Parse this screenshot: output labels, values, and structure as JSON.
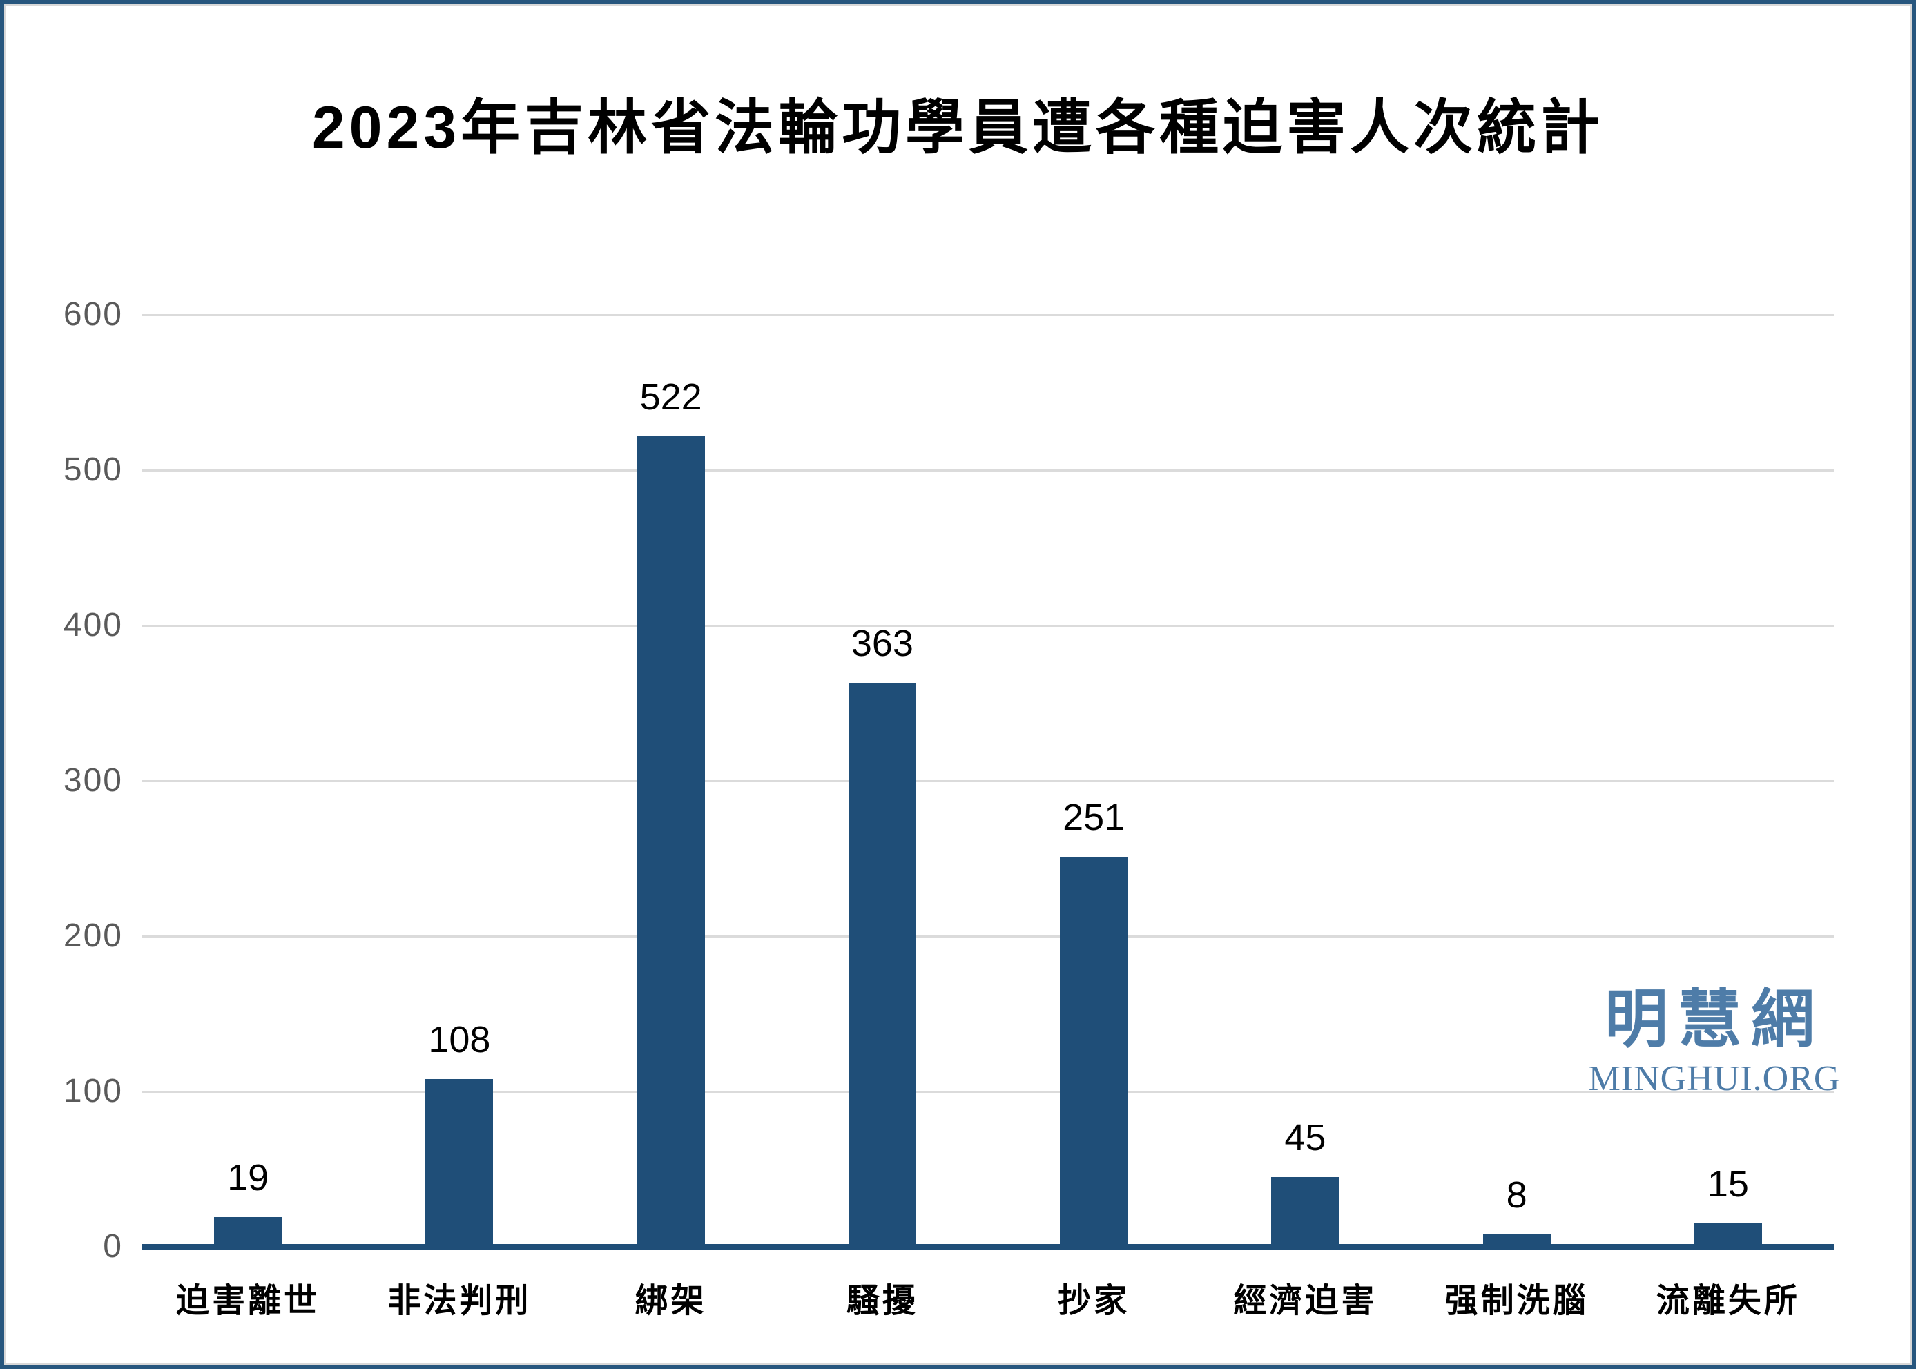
{
  "title": "2023年吉林省法輪功學員遭各種迫害人次統計",
  "watermark": {
    "cjk": "明慧網",
    "latin": "MINGHUI.ORG"
  },
  "colors": {
    "bar": "#1F4E78",
    "axis_line": "#1F4E78",
    "gridline": "#DBDBDB",
    "y_tick_label": "#5A5A5A",
    "title_text": "#000000",
    "data_label": "#000000",
    "x_tick_label": "#000000",
    "watermark": "#4E7CA8",
    "frame_border": "#27567E",
    "background": "#FFFFFF"
  },
  "chart_data": {
    "type": "bar",
    "title": "2023年吉林省法輪功學員遭各種迫害人次統計",
    "categories": [
      "迫害離世",
      "非法判刑",
      "綁架",
      "騷擾",
      "抄家",
      "經濟迫害",
      "强制洗腦",
      "流離失所"
    ],
    "values": [
      19,
      108,
      522,
      363,
      251,
      45,
      8,
      15
    ],
    "xlabel": "",
    "ylabel": "",
    "ylim": [
      0,
      600
    ],
    "yticks": [
      0,
      100,
      200,
      300,
      400,
      500,
      600
    ],
    "grid": true,
    "legend": false,
    "data_labels": true,
    "bar_color": "#1F4E78"
  }
}
